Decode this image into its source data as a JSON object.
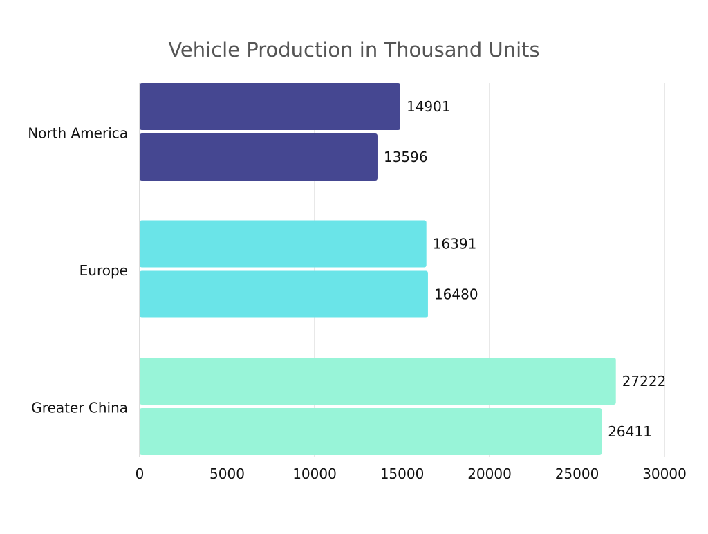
{
  "chart_data": {
    "type": "bar",
    "orientation": "horizontal",
    "title": "Vehicle Production in Thousand Units",
    "xlabel": "",
    "ylabel": "",
    "categories": [
      "North America",
      "Europe",
      "Greater China"
    ],
    "series": [
      {
        "values": [
          14901,
          16391,
          27222
        ]
      },
      {
        "values": [
          13596,
          16480,
          26411
        ]
      }
    ],
    "category_colors": [
      "#454791",
      "#6AE4E8",
      "#98F4D8"
    ],
    "xlim": [
      0,
      30000
    ],
    "x_ticks": [
      "0",
      "5000",
      "10000",
      "15000",
      "20000",
      "25000",
      "30000"
    ],
    "grid": "vertical",
    "legend": "none"
  }
}
